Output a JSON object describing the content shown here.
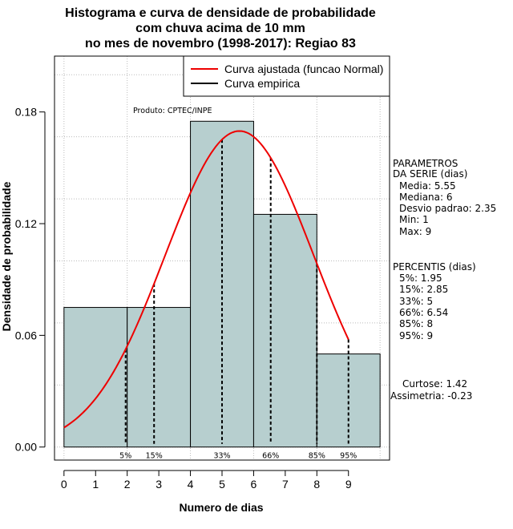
{
  "chart_data": {
    "type": "bar",
    "title_lines": [
      "Histograma e curva de densidade de probabilidade",
      "com chuva acima de 10 mm",
      "no mes de novembro (1998-2017): Regiao 83"
    ],
    "xlabel": "Numero de dias",
    "ylabel": "Densidade de probabilidade",
    "xlim": [
      -0.3,
      10.3
    ],
    "ylim": [
      -0.007,
      0.21
    ],
    "x_ticks": [
      "0",
      "1",
      "2",
      "3",
      "4",
      "5",
      "6",
      "7",
      "8",
      "9"
    ],
    "y_ticks": [
      "0.00",
      "0.06",
      "0.12",
      "0.18"
    ],
    "bins": [
      {
        "from": 0,
        "to": 2,
        "density": 0.075
      },
      {
        "from": 2,
        "to": 4,
        "density": 0.075
      },
      {
        "from": 4,
        "to": 6,
        "density": 0.175
      },
      {
        "from": 6,
        "to": 8,
        "density": 0.125
      },
      {
        "from": 8,
        "to": 10,
        "density": 0.05
      }
    ],
    "bar_color": "#b7cfcf",
    "normal_curve": {
      "name": "Curva ajustada (funcao Normal)",
      "mean": 5.55,
      "sd": 2.35,
      "x_from": 0,
      "x_to": 9.0,
      "color": "#ee0000"
    },
    "percentile_lines": [
      {
        "label": "5%",
        "x": 1.95
      },
      {
        "label": "15%",
        "x": 2.85
      },
      {
        "label": "33%",
        "x": 5
      },
      {
        "label": "66%",
        "x": 6.54
      },
      {
        "label": "85%",
        "x": 8
      },
      {
        "label": "95%",
        "x": 9
      }
    ],
    "legend": [
      {
        "label": "Curva ajustada (funcao Normal)",
        "color": "#ee0000"
      },
      {
        "label": "Curva empirica",
        "color": "#000000"
      }
    ],
    "annotation": "Produto: CPTEC/INPE"
  },
  "side_panel": {
    "params_title_1": "PARAMETROS",
    "params_title_2": "DA SERIE (dias)",
    "params": [
      "Media: 5.55",
      "Mediana: 6",
      "Desvio padrao: 2.35",
      "Min: 1",
      "Max: 9"
    ],
    "percentis_title": "PERCENTIS (dias)",
    "percentis": [
      "5%: 1.95",
      "15%: 2.85",
      "33%: 5",
      "66%: 6.54",
      "85%: 8",
      "95%: 9"
    ],
    "curtose": "Curtose: 1.42",
    "assimetria": "Assimetria: -0.23"
  }
}
